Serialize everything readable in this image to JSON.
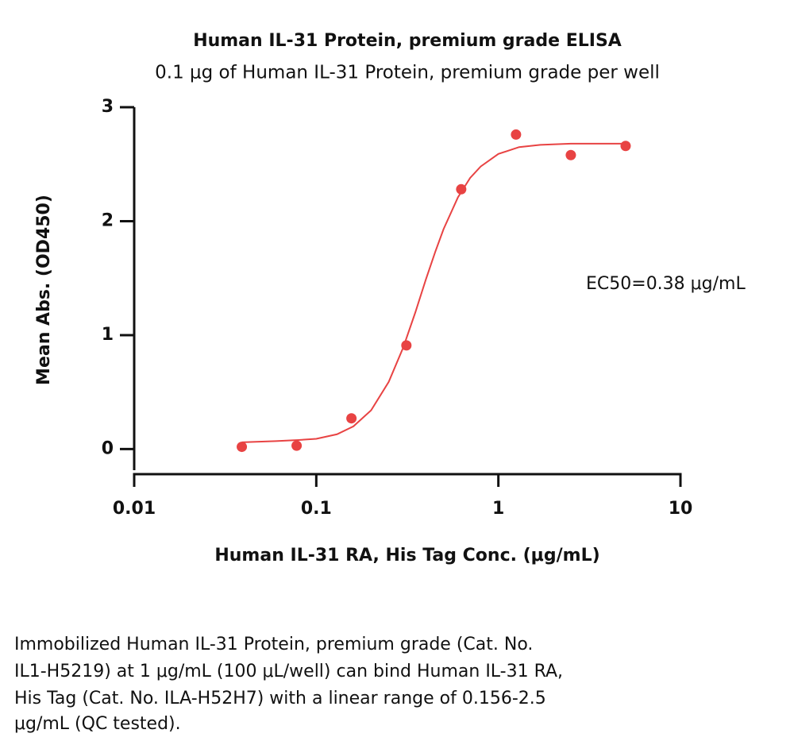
{
  "chart_data": {
    "type": "scatter",
    "title": "Human IL-31 Protein, premium grade ELISA",
    "subtitle": "0.1 μg of Human IL-31 Protein, premium grade per well",
    "x_label": "Human IL-31 RA, His Tag Conc. (μg/mL)",
    "y_label": "Mean Abs. (OD450)",
    "annotation": "EC50=0.38 μg/mL",
    "xscale": "log",
    "xlim": [
      0.01,
      10
    ],
    "xticks": [
      0.01,
      0.1,
      1,
      10
    ],
    "ylim": [
      -0.22,
      3
    ],
    "yticks": [
      0,
      1,
      2,
      3
    ],
    "grid": false,
    "series": [
      {
        "style": "points",
        "color": "#e84343",
        "x": [
          0.039,
          0.078,
          0.156,
          0.3125,
          0.625,
          1.25,
          2.5,
          5
        ],
        "values": [
          0.02,
          0.03,
          0.27,
          0.91,
          2.28,
          2.76,
          2.58,
          2.66
        ]
      },
      {
        "style": "line",
        "color": "#e84343",
        "x": [
          0.039,
          0.06,
          0.08,
          0.1,
          0.13,
          0.16,
          0.2,
          0.25,
          0.3,
          0.35,
          0.4,
          0.45,
          0.5,
          0.6,
          0.7,
          0.8,
          1,
          1.3,
          1.7,
          2.5,
          5
        ],
        "values": [
          0.06,
          0.07,
          0.08,
          0.09,
          0.13,
          0.2,
          0.34,
          0.59,
          0.89,
          1.2,
          1.49,
          1.73,
          1.93,
          2.21,
          2.38,
          2.48,
          2.59,
          2.65,
          2.67,
          2.68,
          2.68
        ]
      }
    ]
  },
  "caption": [
    "Immobilized Human IL-31 Protein, premium grade (Cat. No.",
    "IL1-H5219) at 1 μg/mL (100 μL/well) can bind Human IL-31 RA,",
    "His Tag (Cat. No. ILA-H52H7) with a linear range of 0.156-2.5",
    "μg/mL (QC tested)."
  ]
}
